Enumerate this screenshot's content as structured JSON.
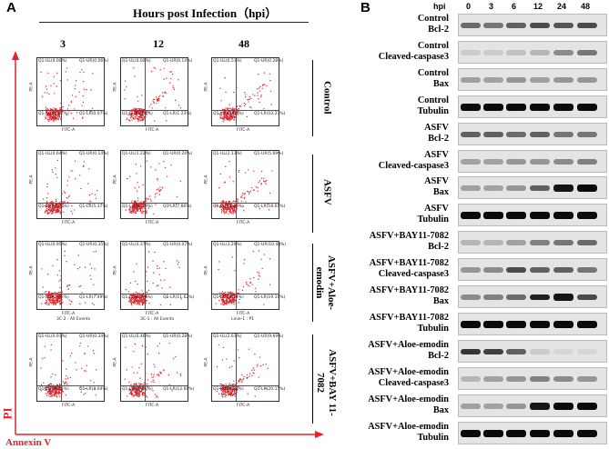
{
  "panel_a": {
    "letter": "A",
    "header_title": "Hours post Infection（hpi）",
    "timepoints": [
      "3",
      "12",
      "48"
    ],
    "y_axis_label": "PI",
    "x_axis_label": "Annexin V",
    "axis_x_channel": "FITC-A",
    "axis_y_channel": "PE-A",
    "rows": [
      {
        "label": "Control",
        "plots": [
          {
            "ul": "Q1-UL(0.00%)",
            "ur": "Q1-UR(0.06%)",
            "ll": "Q1-LL(99.87%)",
            "lr": "Q1-LR(0.07%)",
            "gate": ""
          },
          {
            "ul": "Q1-UL(0.00%)",
            "ur": "Q1-UR(0.14%)",
            "ll": "Q1-LL(98.64%)",
            "lr": "Q1-LR(1.23%)",
            "gate": ""
          },
          {
            "ul": "Q1-UL(0.51%)",
            "ur": "Q1-UR(0.28%)",
            "ll": "Q1-LL(89.03%)",
            "lr": "Q1-LR(10.23%)",
            "gate": ""
          }
        ]
      },
      {
        "label": "ASFV",
        "plots": [
          {
            "ul": "Q1-UL(0.64%)",
            "ur": "Q1-UR(0.14%)",
            "ll": "Q1-LL(94.05%)",
            "lr": "Q1-LR(5.17%)",
            "gate": ""
          },
          {
            "ul": "Q1-UL(1.22%)",
            "ur": "Q1-UR(0.20%)",
            "ll": "Q1-LL(90.78%)",
            "lr": "Q1-LR(7.80%)",
            "gate": ""
          },
          {
            "ul": "Q1-UL(2.13%)",
            "ur": "Q1-UR(5.69%)",
            "ll": "Q1-LL(73.46%)",
            "lr": "Q1-LR(18.61%)",
            "gate": ""
          }
        ]
      },
      {
        "label": "ASFV+Aloe-emodin",
        "plots": [
          {
            "ul": "Q1-UL(0.95%)",
            "ur": "Q1-UR(0.35%)",
            "ll": "Q1-LL(91.32%)",
            "lr": "Q1-LR(7.49%)",
            "gate": "3C-2 : All Events"
          },
          {
            "ul": "Q1-UL(0.37%)",
            "ur": "Q1-UR(0.07%)",
            "ll": "Q1-LL(87.94%)",
            "lr": "Q1-LR(11.62%)",
            "gate": "3C-1 : All Events"
          },
          {
            "ul": "Q1-UL(3.29%)",
            "ur": "Q1-UR(10.48%)",
            "ll": "Q1-LL(66.14%)",
            "lr": "Q1-LR(19.10%)",
            "gate": "Linie-1 : P1"
          }
        ]
      },
      {
        "label": "ASFV+BAY 11-7082",
        "plots": [
          {
            "ul": "Q1-UL(0.91%)",
            "ur": "Q1-UR(0.34%)",
            "ll": "Q1-LL(89.71%)",
            "lr": "Q1-LR(9.04%)",
            "gate": ""
          },
          {
            "ul": "Q1-UL(0.46%)",
            "ur": "Q1-UR(0.28%)",
            "ll": "Q1-LL(86.56%)",
            "lr": "Q1-LR(12.60%)",
            "gate": ""
          },
          {
            "ul": "Q1-UL(2.61%)",
            "ur": "Q1-UR(9.69%)",
            "ll": "Q1-LL(68.33%)",
            "lr": "Q1-LR(20.15%)",
            "gate": ""
          }
        ]
      }
    ]
  },
  "panel_b": {
    "letter": "B",
    "hpi_label": "hpi",
    "timepoints": [
      "0",
      "3",
      "6",
      "12",
      "24",
      "48"
    ],
    "blots": [
      {
        "line1": "Control",
        "line2": "Bcl-2",
        "bands": [
          0.55,
          0.5,
          0.6,
          0.7,
          0.65,
          0.7
        ]
      },
      {
        "line1": "Control",
        "line2": "Cleaved-caspase3",
        "bands": [
          0.1,
          0.1,
          0.15,
          0.2,
          0.4,
          0.5
        ]
      },
      {
        "line1": "Control",
        "line2": "Bax",
        "bands": [
          0.3,
          0.3,
          0.35,
          0.3,
          0.35,
          0.35
        ]
      },
      {
        "line1": "Control",
        "line2": "Tubulin",
        "bands": [
          1,
          1,
          1,
          1,
          1,
          1
        ]
      },
      {
        "line1": "ASFV",
        "line2": "Bcl-2",
        "bands": [
          0.6,
          0.6,
          0.55,
          0.6,
          0.5,
          0.5
        ]
      },
      {
        "line1": "ASFV",
        "line2": "Cleaved-caspase3",
        "bands": [
          0.3,
          0.3,
          0.35,
          0.35,
          0.4,
          0.45
        ]
      },
      {
        "line1": "ASFV",
        "line2": "Bax",
        "bands": [
          0.3,
          0.3,
          0.35,
          0.6,
          0.95,
          1
        ]
      },
      {
        "line1": "ASFV",
        "line2": "Tubulin",
        "bands": [
          1,
          1,
          1,
          1,
          1,
          1
        ]
      },
      {
        "line1": "ASFV+BAY11-7082",
        "line2": "Bcl-2",
        "bands": [
          0.2,
          0.2,
          0.3,
          0.45,
          0.5,
          0.55
        ]
      },
      {
        "line1": "ASFV+BAY11-7082",
        "line2": "Cleaved-caspase3",
        "bands": [
          0.35,
          0.4,
          0.7,
          0.6,
          0.6,
          0.5
        ]
      },
      {
        "line1": "ASFV+BAY11-7082",
        "line2": "Bax",
        "bands": [
          0.4,
          0.45,
          0.55,
          0.9,
          0.95,
          0.7
        ]
      },
      {
        "line1": "ASFV+BAY11-7082",
        "line2": "Tubulin",
        "bands": [
          1,
          1,
          1,
          1,
          1,
          1
        ]
      },
      {
        "line1": "ASFV+Aloe-emodin",
        "line2": "Bcl-2",
        "bands": [
          0.8,
          0.75,
          0.6,
          0.1,
          0.05,
          0.05
        ]
      },
      {
        "line1": "ASFV+Aloe-emodin",
        "line2": "Cleaved-caspase3",
        "bands": [
          0.2,
          0.3,
          0.35,
          0.45,
          0.4,
          0.35
        ]
      },
      {
        "line1": "ASFV+Aloe-emodin",
        "line2": "Bax",
        "bands": [
          0.3,
          0.3,
          0.35,
          0.95,
          1,
          1
        ]
      },
      {
        "line1": "ASFV+Aloe-emodin",
        "line2": "Tubulin",
        "bands": [
          1,
          1,
          1,
          1,
          1,
          1
        ]
      }
    ]
  },
  "colors": {
    "axis_red": "#e8222a",
    "dot_red": "#d8262d"
  }
}
